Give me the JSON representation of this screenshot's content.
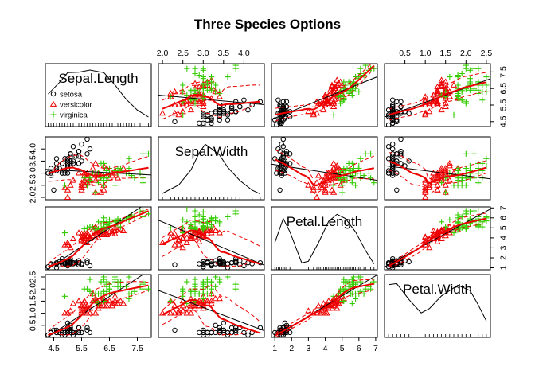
{
  "title": "Three Species Options",
  "chart_data": {
    "type": "scatter-matrix",
    "title": "Three Species Options",
    "variables": [
      {
        "name": "Sepal.Length",
        "range": [
          4.2,
          8.0
        ],
        "ticks": [
          "4.5",
          "5.5",
          "6.5",
          "7.5"
        ],
        "tick_values": [
          4.5,
          5.5,
          6.5,
          7.5
        ],
        "rug": [
          4.3,
          4.4,
          4.5,
          4.6,
          4.7,
          4.8,
          4.9,
          5.0,
          5.1,
          5.2,
          5.3,
          5.4,
          5.5,
          5.6,
          5.7,
          5.8,
          5.9,
          6.0,
          6.1,
          6.2,
          6.3,
          6.4,
          6.5,
          6.6,
          6.7,
          6.8,
          6.9,
          7.0,
          7.1,
          7.2,
          7.3,
          7.4,
          7.6,
          7.7,
          7.9
        ]
      },
      {
        "name": "Sepal.Width",
        "range": [
          1.9,
          4.5
        ],
        "ticks": [
          "2.0",
          "2.5",
          "3.0",
          "3.5",
          "4.0"
        ],
        "tick_values": [
          2.0,
          2.5,
          3.0,
          3.5,
          4.0
        ],
        "rug": [
          2.0,
          2.2,
          2.3,
          2.4,
          2.5,
          2.6,
          2.7,
          2.8,
          2.9,
          3.0,
          3.1,
          3.2,
          3.3,
          3.4,
          3.5,
          3.6,
          3.7,
          3.8,
          3.9,
          4.0,
          4.1,
          4.2,
          4.4
        ]
      },
      {
        "name": "Petal.Length",
        "range": [
          0.8,
          7.1
        ],
        "ticks": [
          "1",
          "2",
          "3",
          "4",
          "5",
          "6",
          "7"
        ],
        "tick_values": [
          1,
          2,
          3,
          4,
          5,
          6,
          7
        ],
        "rug": [
          1.0,
          1.1,
          1.2,
          1.3,
          1.4,
          1.5,
          1.6,
          1.7,
          1.9,
          3.0,
          3.3,
          3.5,
          3.6,
          3.7,
          3.8,
          3.9,
          4.0,
          4.1,
          4.2,
          4.3,
          4.4,
          4.5,
          4.6,
          4.7,
          4.8,
          4.9,
          5.0,
          5.1,
          5.2,
          5.3,
          5.4,
          5.5,
          5.6,
          5.7,
          5.8,
          5.9,
          6.0,
          6.1,
          6.3,
          6.4,
          6.6,
          6.7,
          6.9
        ]
      },
      {
        "name": "Petal.Width",
        "range": [
          0.0,
          2.6
        ],
        "ticks": [
          "0.5",
          "1.0",
          "1.5",
          "2.0",
          "2.5"
        ],
        "tick_values": [
          0.5,
          1.0,
          1.5,
          2.0,
          2.5
        ],
        "rug": [
          0.1,
          0.2,
          0.3,
          0.4,
          0.5,
          0.6,
          1.0,
          1.1,
          1.2,
          1.3,
          1.4,
          1.5,
          1.6,
          1.7,
          1.8,
          1.9,
          2.0,
          2.1,
          2.2,
          2.3,
          2.4,
          2.5
        ]
      }
    ],
    "density_curves": [
      [
        [
          4.3,
          0.55
        ],
        [
          4.8,
          0.82
        ],
        [
          5.0,
          0.95
        ],
        [
          5.4,
          0.96
        ],
        [
          5.8,
          1.0
        ],
        [
          6.3,
          0.95
        ],
        [
          6.7,
          0.72
        ],
        [
          7.1,
          0.45
        ],
        [
          7.5,
          0.25
        ],
        [
          7.9,
          0.12
        ]
      ],
      [
        [
          2.0,
          0.06
        ],
        [
          2.4,
          0.22
        ],
        [
          2.7,
          0.5
        ],
        [
          2.9,
          0.82
        ],
        [
          3.05,
          0.98
        ],
        [
          3.2,
          0.9
        ],
        [
          3.4,
          0.78
        ],
        [
          3.6,
          0.55
        ],
        [
          3.9,
          0.3
        ],
        [
          4.2,
          0.12
        ],
        [
          4.4,
          0.05
        ]
      ],
      [
        [
          1.0,
          0.45
        ],
        [
          1.5,
          0.9
        ],
        [
          1.9,
          0.65
        ],
        [
          2.6,
          0.07
        ],
        [
          3.0,
          0.1
        ],
        [
          3.6,
          0.45
        ],
        [
          4.2,
          0.85
        ],
        [
          4.7,
          0.98
        ],
        [
          5.2,
          0.9
        ],
        [
          5.8,
          0.65
        ],
        [
          6.4,
          0.3
        ],
        [
          6.9,
          0.05
        ]
      ],
      [
        [
          0.1,
          0.93
        ],
        [
          0.3,
          0.95
        ],
        [
          0.6,
          0.65
        ],
        [
          0.9,
          0.4
        ],
        [
          1.1,
          0.48
        ],
        [
          1.4,
          0.72
        ],
        [
          1.8,
          0.92
        ],
        [
          2.1,
          0.82
        ],
        [
          2.3,
          0.55
        ],
        [
          2.5,
          0.25
        ]
      ]
    ],
    "groups": [
      {
        "name": "setosa",
        "color": "#000000",
        "marker": "circle"
      },
      {
        "name": "versicolor",
        "color": "#ee0000",
        "marker": "triangle"
      },
      {
        "name": "virginica",
        "color": "#33cc00",
        "marker": "plus"
      }
    ],
    "observations": {
      "setosa": [
        [
          5.1,
          3.5,
          1.4,
          0.2
        ],
        [
          4.9,
          3.0,
          1.4,
          0.2
        ],
        [
          4.7,
          3.2,
          1.3,
          0.2
        ],
        [
          4.6,
          3.1,
          1.5,
          0.2
        ],
        [
          5.0,
          3.6,
          1.4,
          0.2
        ],
        [
          5.4,
          3.9,
          1.7,
          0.4
        ],
        [
          4.6,
          3.4,
          1.4,
          0.3
        ],
        [
          5.0,
          3.4,
          1.5,
          0.2
        ],
        [
          4.4,
          2.9,
          1.4,
          0.2
        ],
        [
          4.9,
          3.1,
          1.5,
          0.1
        ],
        [
          5.4,
          3.7,
          1.5,
          0.2
        ],
        [
          4.8,
          3.4,
          1.6,
          0.2
        ],
        [
          4.8,
          3.0,
          1.4,
          0.1
        ],
        [
          4.3,
          3.0,
          1.1,
          0.1
        ],
        [
          5.8,
          4.0,
          1.2,
          0.2
        ],
        [
          5.7,
          4.4,
          1.5,
          0.4
        ],
        [
          5.4,
          3.9,
          1.3,
          0.4
        ],
        [
          5.1,
          3.5,
          1.4,
          0.3
        ],
        [
          5.7,
          3.8,
          1.7,
          0.3
        ],
        [
          5.1,
          3.8,
          1.5,
          0.3
        ],
        [
          5.4,
          3.4,
          1.7,
          0.2
        ],
        [
          5.1,
          3.7,
          1.5,
          0.4
        ],
        [
          4.6,
          3.6,
          1.0,
          0.2
        ],
        [
          5.1,
          3.3,
          1.7,
          0.5
        ],
        [
          4.8,
          3.4,
          1.9,
          0.2
        ],
        [
          5.0,
          3.0,
          1.6,
          0.2
        ],
        [
          5.0,
          3.4,
          1.6,
          0.4
        ],
        [
          5.2,
          3.5,
          1.5,
          0.2
        ],
        [
          5.2,
          3.4,
          1.4,
          0.2
        ],
        [
          4.7,
          3.2,
          1.6,
          0.2
        ],
        [
          4.8,
          3.1,
          1.6,
          0.2
        ],
        [
          5.4,
          3.4,
          1.5,
          0.4
        ],
        [
          5.2,
          4.1,
          1.5,
          0.1
        ],
        [
          5.5,
          4.2,
          1.4,
          0.2
        ],
        [
          4.9,
          3.1,
          1.5,
          0.2
        ],
        [
          5.0,
          3.2,
          1.2,
          0.2
        ],
        [
          5.5,
          3.5,
          1.3,
          0.2
        ],
        [
          4.9,
          3.6,
          1.4,
          0.1
        ],
        [
          4.4,
          3.0,
          1.3,
          0.2
        ],
        [
          5.1,
          3.4,
          1.5,
          0.2
        ],
        [
          5.0,
          3.5,
          1.3,
          0.3
        ],
        [
          4.5,
          2.3,
          1.3,
          0.3
        ],
        [
          4.4,
          3.2,
          1.3,
          0.2
        ],
        [
          5.0,
          3.5,
          1.6,
          0.6
        ],
        [
          5.1,
          3.8,
          1.9,
          0.4
        ],
        [
          4.8,
          3.0,
          1.4,
          0.3
        ],
        [
          5.1,
          3.8,
          1.6,
          0.2
        ],
        [
          4.6,
          3.2,
          1.4,
          0.2
        ],
        [
          5.3,
          3.7,
          1.5,
          0.2
        ],
        [
          5.0,
          3.3,
          1.4,
          0.2
        ]
      ],
      "versicolor": [
        [
          7.0,
          3.2,
          4.7,
          1.4
        ],
        [
          6.4,
          3.2,
          4.5,
          1.5
        ],
        [
          6.9,
          3.1,
          4.9,
          1.5
        ],
        [
          5.5,
          2.3,
          4.0,
          1.3
        ],
        [
          6.5,
          2.8,
          4.6,
          1.5
        ],
        [
          5.7,
          2.8,
          4.5,
          1.3
        ],
        [
          6.3,
          3.3,
          4.7,
          1.6
        ],
        [
          4.9,
          2.4,
          3.3,
          1.0
        ],
        [
          6.6,
          2.9,
          4.6,
          1.3
        ],
        [
          5.2,
          2.7,
          3.9,
          1.4
        ],
        [
          5.0,
          2.0,
          3.5,
          1.0
        ],
        [
          5.9,
          3.0,
          4.2,
          1.5
        ],
        [
          6.0,
          2.2,
          4.0,
          1.0
        ],
        [
          6.1,
          2.9,
          4.7,
          1.4
        ],
        [
          5.6,
          2.9,
          3.6,
          1.3
        ],
        [
          6.7,
          3.1,
          4.4,
          1.4
        ],
        [
          5.6,
          3.0,
          4.5,
          1.5
        ],
        [
          5.8,
          2.7,
          4.1,
          1.0
        ],
        [
          6.2,
          2.2,
          4.5,
          1.5
        ],
        [
          5.6,
          2.5,
          3.9,
          1.1
        ],
        [
          5.9,
          3.2,
          4.8,
          1.8
        ],
        [
          6.1,
          2.8,
          4.0,
          1.3
        ],
        [
          6.3,
          2.5,
          4.9,
          1.5
        ],
        [
          6.1,
          2.8,
          4.7,
          1.2
        ],
        [
          6.4,
          2.9,
          4.3,
          1.3
        ],
        [
          6.6,
          3.0,
          4.4,
          1.4
        ],
        [
          6.8,
          2.8,
          4.8,
          1.4
        ],
        [
          6.7,
          3.0,
          5.0,
          1.7
        ],
        [
          6.0,
          2.9,
          4.5,
          1.5
        ],
        [
          5.7,
          2.6,
          3.5,
          1.0
        ],
        [
          5.5,
          2.4,
          3.8,
          1.1
        ],
        [
          5.5,
          2.4,
          3.7,
          1.0
        ],
        [
          5.8,
          2.7,
          3.9,
          1.2
        ],
        [
          6.0,
          2.7,
          5.1,
          1.6
        ],
        [
          5.4,
          3.0,
          4.5,
          1.5
        ],
        [
          6.0,
          3.4,
          4.5,
          1.6
        ],
        [
          6.7,
          3.1,
          4.7,
          1.5
        ],
        [
          6.3,
          2.3,
          4.4,
          1.3
        ],
        [
          5.6,
          3.0,
          4.1,
          1.3
        ],
        [
          5.5,
          2.5,
          4.0,
          1.3
        ],
        [
          5.5,
          2.6,
          4.4,
          1.2
        ],
        [
          6.1,
          3.0,
          4.6,
          1.4
        ],
        [
          5.8,
          2.6,
          4.0,
          1.2
        ],
        [
          5.0,
          2.3,
          3.3,
          1.0
        ],
        [
          5.6,
          2.7,
          4.2,
          1.3
        ],
        [
          5.7,
          3.0,
          4.2,
          1.2
        ],
        [
          5.7,
          2.9,
          4.2,
          1.3
        ],
        [
          6.2,
          2.9,
          4.3,
          1.3
        ],
        [
          5.1,
          2.5,
          3.0,
          1.1
        ],
        [
          5.7,
          2.8,
          4.1,
          1.3
        ]
      ],
      "virginica": [
        [
          6.3,
          3.3,
          6.0,
          2.5
        ],
        [
          5.8,
          2.7,
          5.1,
          1.9
        ],
        [
          7.1,
          3.0,
          5.9,
          2.1
        ],
        [
          6.3,
          2.9,
          5.6,
          1.8
        ],
        [
          6.5,
          3.0,
          5.8,
          2.2
        ],
        [
          7.6,
          3.0,
          6.6,
          2.1
        ],
        [
          4.9,
          2.5,
          4.5,
          1.7
        ],
        [
          7.3,
          2.9,
          6.3,
          1.8
        ],
        [
          6.7,
          2.5,
          5.8,
          1.8
        ],
        [
          7.2,
          3.6,
          6.1,
          2.5
        ],
        [
          6.5,
          3.2,
          5.1,
          2.0
        ],
        [
          6.4,
          2.7,
          5.3,
          1.9
        ],
        [
          6.8,
          3.0,
          5.5,
          2.1
        ],
        [
          5.7,
          2.5,
          5.0,
          2.0
        ],
        [
          5.8,
          2.8,
          5.1,
          2.4
        ],
        [
          6.4,
          3.2,
          5.3,
          2.3
        ],
        [
          6.5,
          3.0,
          5.5,
          1.8
        ],
        [
          7.7,
          3.8,
          6.7,
          2.2
        ],
        [
          7.7,
          2.6,
          6.9,
          2.3
        ],
        [
          6.0,
          2.2,
          5.0,
          1.5
        ],
        [
          6.9,
          3.2,
          5.7,
          2.3
        ],
        [
          5.6,
          2.8,
          4.9,
          2.0
        ],
        [
          7.7,
          2.8,
          6.7,
          2.0
        ],
        [
          6.3,
          2.7,
          4.9,
          1.8
        ],
        [
          6.7,
          3.3,
          5.7,
          2.1
        ],
        [
          7.2,
          3.2,
          6.0,
          1.8
        ],
        [
          6.2,
          2.8,
          4.8,
          1.8
        ],
        [
          6.1,
          3.0,
          4.9,
          1.8
        ],
        [
          6.4,
          2.8,
          5.6,
          2.1
        ],
        [
          7.2,
          3.0,
          5.8,
          1.6
        ],
        [
          7.4,
          2.8,
          6.1,
          1.9
        ],
        [
          7.9,
          3.8,
          6.4,
          2.0
        ],
        [
          6.4,
          2.8,
          5.6,
          2.2
        ],
        [
          6.3,
          2.8,
          5.1,
          1.5
        ],
        [
          6.1,
          2.6,
          5.6,
          1.4
        ],
        [
          7.7,
          3.0,
          6.1,
          2.3
        ],
        [
          6.3,
          3.4,
          5.6,
          2.4
        ],
        [
          6.4,
          3.1,
          5.5,
          1.8
        ],
        [
          6.0,
          3.0,
          4.8,
          1.8
        ],
        [
          6.9,
          3.1,
          5.4,
          2.1
        ],
        [
          6.7,
          3.1,
          5.6,
          2.4
        ],
        [
          6.9,
          3.1,
          5.1,
          2.3
        ],
        [
          5.8,
          2.7,
          5.1,
          1.9
        ],
        [
          6.8,
          3.2,
          5.9,
          2.3
        ],
        [
          6.7,
          3.3,
          5.7,
          2.5
        ],
        [
          6.7,
          3.0,
          5.2,
          2.3
        ],
        [
          6.3,
          2.5,
          5.0,
          1.9
        ],
        [
          6.5,
          3.0,
          5.2,
          2.0
        ],
        [
          6.2,
          3.4,
          5.4,
          2.3
        ],
        [
          5.9,
          3.0,
          5.1,
          1.8
        ]
      ]
    },
    "smoother_color": "#ee0000",
    "regression_color": "#000000",
    "legend_position": "inside top-left panel, bottom-left",
    "grid": false
  }
}
